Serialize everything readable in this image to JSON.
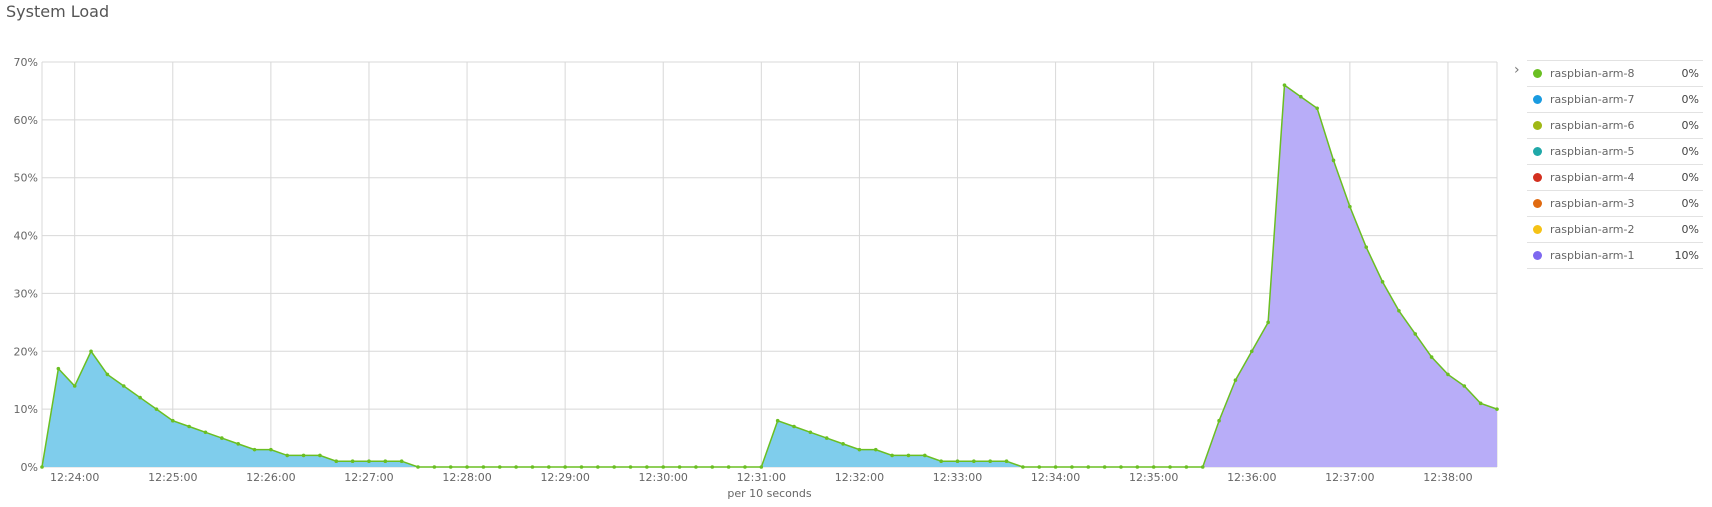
{
  "page": {
    "title": "System Load"
  },
  "legend": {
    "toggle_icon": "chevron-right-icon",
    "items": [
      {
        "name": "raspbian-arm-8",
        "value": "0%",
        "color": "#6abf22"
      },
      {
        "name": "raspbian-arm-7",
        "value": "0%",
        "color": "#1a9be0"
      },
      {
        "name": "raspbian-arm-6",
        "value": "0%",
        "color": "#a0b816"
      },
      {
        "name": "raspbian-arm-5",
        "value": "0%",
        "color": "#20a8a8"
      },
      {
        "name": "raspbian-arm-4",
        "value": "0%",
        "color": "#d3301f"
      },
      {
        "name": "raspbian-arm-3",
        "value": "0%",
        "color": "#e06a10"
      },
      {
        "name": "raspbian-arm-2",
        "value": "0%",
        "color": "#f5c216"
      },
      {
        "name": "raspbian-arm-1",
        "value": "10%",
        "color": "#7e68f0"
      }
    ]
  },
  "chart_data": {
    "type": "area",
    "title": "System Load",
    "xlabel": "per 10 seconds",
    "ylabel": "",
    "ylim": [
      0,
      70
    ],
    "xlim": [
      "12:23:40",
      "12:38:30"
    ],
    "yticks": [
      "0%",
      "10%",
      "20%",
      "30%",
      "40%",
      "50%",
      "60%",
      "70%"
    ],
    "xticks": [
      "12:24:00",
      "12:25:00",
      "12:26:00",
      "12:27:00",
      "12:28:00",
      "12:29:00",
      "12:30:00",
      "12:31:00",
      "12:32:00",
      "12:33:00",
      "12:34:00",
      "12:35:00",
      "12:36:00",
      "12:37:00",
      "12:38:00"
    ],
    "grid": true,
    "legend_position": "right",
    "line_color": "#6abf22",
    "x": [
      "12:23:40",
      "12:23:50",
      "12:24:00",
      "12:24:10",
      "12:24:20",
      "12:24:30",
      "12:24:40",
      "12:24:50",
      "12:25:00",
      "12:25:10",
      "12:25:20",
      "12:25:30",
      "12:25:40",
      "12:25:50",
      "12:26:00",
      "12:26:10",
      "12:26:20",
      "12:26:30",
      "12:26:40",
      "12:26:50",
      "12:27:00",
      "12:27:10",
      "12:27:20",
      "12:27:30",
      "12:27:40",
      "12:27:50",
      "12:28:00",
      "12:28:10",
      "12:28:20",
      "12:28:30",
      "12:28:40",
      "12:28:50",
      "12:29:00",
      "12:29:10",
      "12:29:20",
      "12:29:30",
      "12:29:40",
      "12:29:50",
      "12:30:00",
      "12:30:10",
      "12:30:20",
      "12:30:30",
      "12:30:40",
      "12:30:50",
      "12:31:00",
      "12:31:10",
      "12:31:20",
      "12:31:30",
      "12:31:40",
      "12:31:50",
      "12:32:00",
      "12:32:10",
      "12:32:20",
      "12:32:30",
      "12:32:40",
      "12:32:50",
      "12:33:00",
      "12:33:10",
      "12:33:20",
      "12:33:30",
      "12:33:40",
      "12:33:50",
      "12:34:00",
      "12:34:10",
      "12:34:20",
      "12:34:30",
      "12:34:40",
      "12:34:50",
      "12:35:00",
      "12:35:10",
      "12:35:20",
      "12:35:30",
      "12:35:40",
      "12:35:50",
      "12:36:00",
      "12:36:10",
      "12:36:20",
      "12:36:30",
      "12:36:40",
      "12:36:50",
      "12:37:00",
      "12:37:10",
      "12:37:20",
      "12:37:30",
      "12:37:40",
      "12:37:50",
      "12:38:00",
      "12:38:10",
      "12:38:20",
      "12:38:30"
    ],
    "series": [
      {
        "name": "raspbian-arm-8",
        "color": "#7fcdec",
        "values": [
          0,
          17,
          14,
          20,
          16,
          14,
          12,
          10,
          8,
          7,
          6,
          5,
          4,
          3,
          3,
          2,
          2,
          2,
          1,
          1,
          1,
          1,
          1,
          0,
          0,
          0,
          0,
          0,
          0,
          0,
          0,
          0,
          0,
          0,
          0,
          0,
          0,
          0,
          0,
          0,
          0,
          0,
          0,
          0,
          0,
          8,
          7,
          6,
          5,
          4,
          3,
          3,
          2,
          2,
          2,
          1,
          1,
          1,
          1,
          1,
          0,
          0,
          0,
          0,
          0,
          0,
          0,
          0,
          0,
          0,
          0,
          0,
          0,
          0,
          0,
          0,
          0,
          0,
          0,
          0,
          0,
          0,
          0,
          0,
          0,
          0,
          0,
          0,
          0,
          0
        ]
      },
      {
        "name": "raspbian-arm-1",
        "color": "#b8adf8",
        "values": [
          0,
          0,
          0,
          0,
          0,
          0,
          0,
          0,
          0,
          0,
          0,
          0,
          0,
          0,
          0,
          0,
          0,
          0,
          0,
          0,
          0,
          0,
          0,
          0,
          0,
          0,
          0,
          0,
          0,
          0,
          0,
          0,
          0,
          0,
          0,
          0,
          0,
          0,
          0,
          0,
          0,
          0,
          0,
          0,
          0,
          0,
          0,
          0,
          0,
          0,
          0,
          0,
          0,
          0,
          0,
          0,
          0,
          0,
          0,
          0,
          0,
          0,
          0,
          0,
          0,
          0,
          0,
          0,
          0,
          0,
          0,
          0,
          8,
          15,
          20,
          25,
          66,
          64,
          62,
          53,
          45,
          38,
          32,
          27,
          23,
          19,
          16,
          14,
          11,
          10
        ]
      }
    ]
  }
}
